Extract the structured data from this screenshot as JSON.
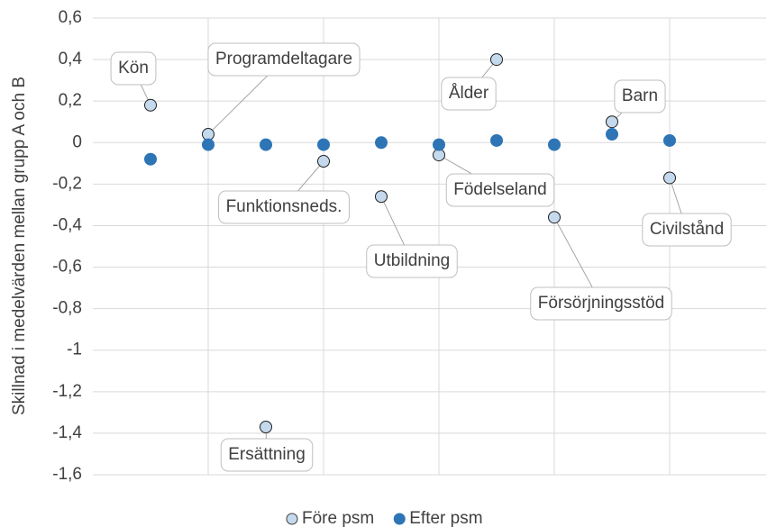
{
  "chart_data": {
    "type": "scatter",
    "y_label": "Skillnad i medelvärden mellan grupp A och B",
    "categories": [
      "Kön",
      "Programdeltagare",
      "Ersättning",
      "Funktionsneds.",
      "Utbildning",
      "Födelseland",
      "Ålder",
      "Försörjningsstöd",
      "Barn",
      "Civilstånd"
    ],
    "series": [
      {
        "name": "Före psm",
        "color": "#c5d9ee",
        "values": [
          0.18,
          0.04,
          -1.37,
          -0.09,
          -0.26,
          -0.06,
          0.4,
          -0.36,
          0.1,
          -0.17
        ]
      },
      {
        "name": "Efter psm",
        "color": "#2e75b6",
        "values": [
          -0.08,
          -0.01,
          -0.01,
          -0.01,
          0.0,
          -0.01,
          0.01,
          -0.01,
          0.04,
          0.01
        ]
      }
    ],
    "ylim": [
      -1.6,
      0.6
    ],
    "yticks": [
      {
        "value": -1.6,
        "label": "-1,6"
      },
      {
        "value": -1.4,
        "label": "-1,4"
      },
      {
        "value": -1.2,
        "label": "-1,2"
      },
      -1,
      {
        "value": -0.8,
        "label": "-0,8"
      },
      {
        "value": -0.6,
        "label": "-0,6"
      },
      {
        "value": -0.4,
        "label": "-0,4"
      },
      {
        "value": -0.2,
        "label": "-0,2"
      },
      0,
      {
        "value": 0.2,
        "label": "0,2"
      },
      {
        "value": 0.4,
        "label": "0,4"
      },
      {
        "value": 0.6,
        "label": "0,6"
      }
    ],
    "grid": true,
    "legend": "bottom"
  }
}
